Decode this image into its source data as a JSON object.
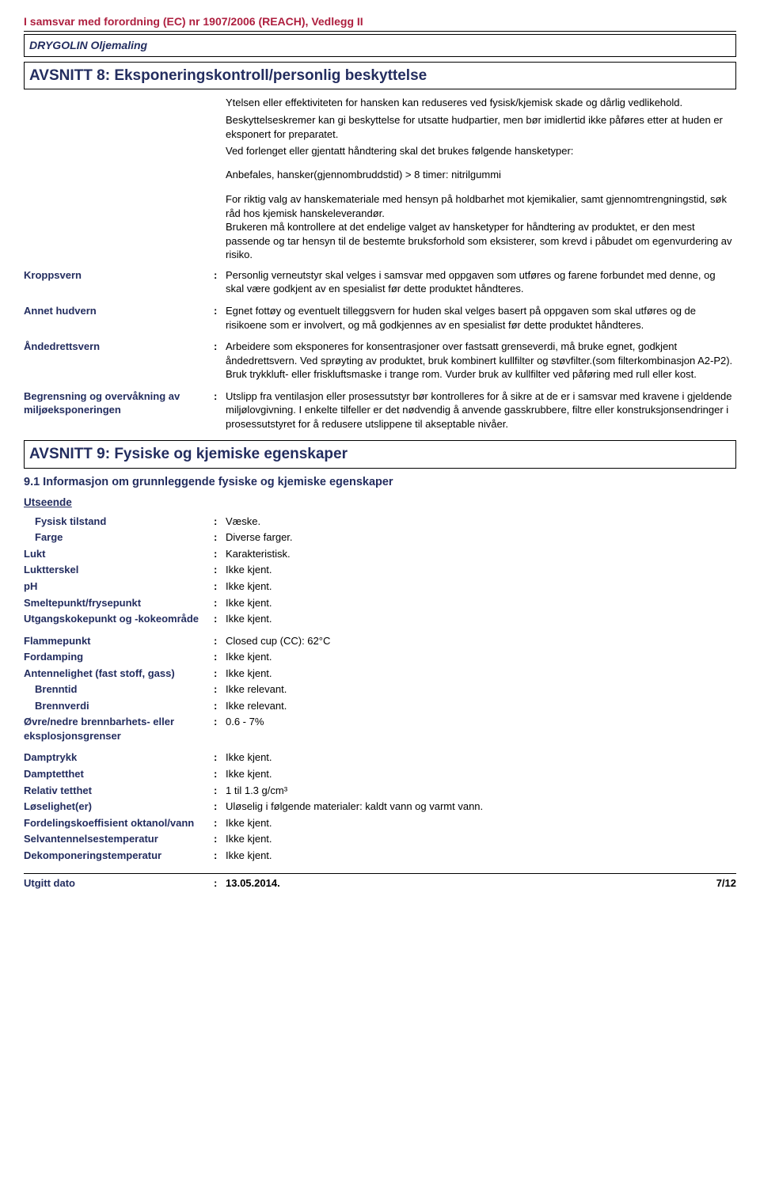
{
  "header": {
    "regulation": "I samsvar med forordning (EC) nr 1907/2006 (REACH), Vedlegg II",
    "product": "DRYGOLIN Oljemaling"
  },
  "section8": {
    "title": "AVSNITT 8: Eksponeringskontroll/personlig beskyttelse",
    "intro": {
      "p1": "Ytelsen eller effektiviteten for hansken kan reduseres ved fysisk/kjemisk skade og dårlig vedlikehold.",
      "p2": "Beskyttelseskremer kan gi beskyttelse for utsatte hudpartier, men bør imidlertid ikke påføres etter at huden er eksponert for preparatet.",
      "p3": "Ved forlenget eller gjentatt håndtering skal det brukes følgende hansketyper:",
      "p4": "Anbefales, hansker(gjennombruddstid) > 8 timer: nitrilgummi"
    },
    "pregroup": {
      "p1": "For riktig valg av hanskemateriale med hensyn på holdbarhet mot kjemikalier, samt gjennomtrengningstid, søk råd hos kjemisk hanskeleverandør.",
      "p2": "Brukeren må kontrollere at det endelige valget av hansketyper for håndtering av produktet, er den mest passende og tar hensyn til de bestemte bruksforhold som eksisterer, som krevd i påbudet om egenvurdering av risiko."
    },
    "rows": {
      "kroppsvern": {
        "label": "Kroppsvern",
        "value": "Personlig verneutstyr skal velges i samsvar med oppgaven som utføres og farene forbundet med denne, og skal være godkjent av en spesialist før dette produktet håndteres."
      },
      "annet_hudvern": {
        "label": "Annet hudvern",
        "value": "Egnet fottøy og eventuelt tilleggsvern for huden skal velges basert på oppgaven som skal utføres og de risikoene som er involvert, og må godkjennes av en spesialist før dette produktet håndteres."
      },
      "andedrettsvern": {
        "label": "Åndedrettsvern",
        "value": "Arbeidere som eksponeres for konsentrasjoner over fastsatt grenseverdi, må bruke egnet, godkjent åndedrettsvern. Ved sprøyting av produktet, bruk kombinert kullfilter og støvfilter.(som filterkombinasjon A2-P2). Bruk trykkluft- eller friskluftsmaske i trange rom. Vurder bruk av kullfilter ved påføring med rull eller kost."
      },
      "begrensning": {
        "label": "Begrensning og overvåkning av miljøeksponeringen",
        "value": "Utslipp fra ventilasjon eller prosessutstyr bør kontrolleres for å sikre at de er i samsvar med kravene i gjeldende miljølovgivning.  I enkelte tilfeller er det nødvendig å anvende gasskrubbere, filtre eller konstruksjonsendringer i prosessutstyret for å redusere utslippene til akseptable nivåer."
      }
    }
  },
  "section9": {
    "title": "AVSNITT 9: Fysiske og kjemiske egenskaper",
    "subheading": "9.1 Informasjon om grunnleggende fysiske og kjemiske egenskaper",
    "utseende": "Utseende",
    "properties": [
      {
        "label": "Fysisk tilstand",
        "value": "Væske.",
        "indent": true
      },
      {
        "label": "Farge",
        "value": "Diverse farger.",
        "indent": true
      },
      {
        "label": "Lukt",
        "value": "Karakteristisk."
      },
      {
        "label": "Luktterskel",
        "value": "Ikke kjent."
      },
      {
        "label": "pH",
        "value": "Ikke kjent."
      },
      {
        "label": "Smeltepunkt/frysepunkt",
        "value": "Ikke kjent."
      },
      {
        "label": "Utgangskokepunkt og -kokeområde",
        "value": "Ikke kjent."
      },
      {
        "label": "Flammepunkt",
        "value": "Closed cup (CC): 62°C"
      },
      {
        "label": "Fordamping",
        "value": "Ikke kjent."
      },
      {
        "label": "Antennelighet (fast stoff, gass)",
        "value": "Ikke kjent."
      },
      {
        "label": "Brenntid",
        "value": "Ikke relevant.",
        "indent": true
      },
      {
        "label": "Brennverdi",
        "value": "Ikke relevant.",
        "indent": true
      },
      {
        "label": "Øvre/nedre brennbarhets- eller eksplosjonsgrenser",
        "value": "0.6 - 7%"
      },
      {
        "label": "Damptrykk",
        "value": "Ikke kjent."
      },
      {
        "label": "Damptetthet",
        "value": "Ikke kjent."
      },
      {
        "label": "Relativ tetthet",
        "value": "1 til 1.3 g/cm³"
      },
      {
        "label": "Løselighet(er)",
        "value": "Uløselig i følgende materialer: kaldt vann og varmt vann."
      },
      {
        "label": "Fordelingskoeffisient oktanol/vann",
        "value": "Ikke kjent."
      },
      {
        "label": "Selvantennelsestemperatur",
        "value": "Ikke kjent."
      },
      {
        "label": "Dekomponeringstemperatur",
        "value": "Ikke kjent."
      }
    ]
  },
  "footer": {
    "label": "Utgitt dato",
    "date": "13.05.2014.",
    "page": "7/12"
  },
  "colon": ":"
}
